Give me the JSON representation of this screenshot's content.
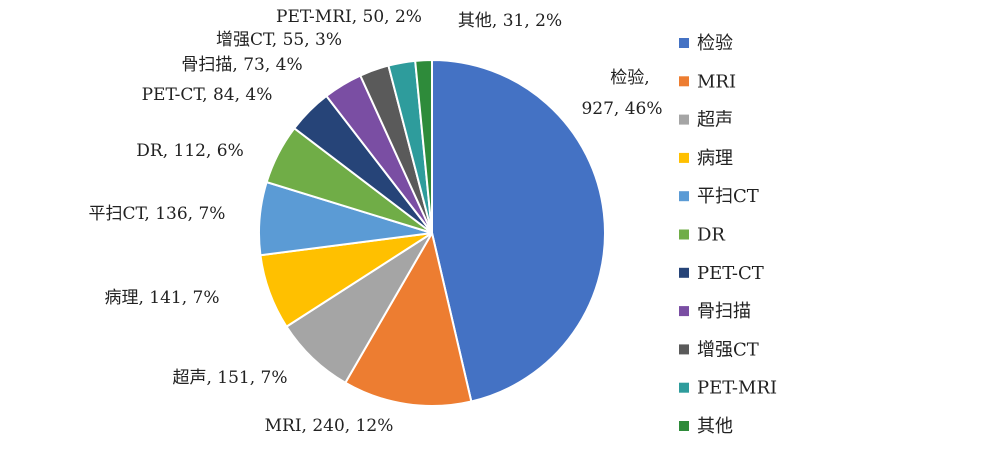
{
  "chart_data": {
    "type": "pie",
    "title": "",
    "series": [
      {
        "values": [
          927,
          240,
          151,
          141,
          136,
          112,
          84,
          73,
          55,
          50,
          31
        ],
        "percents": [
          "46%",
          "12%",
          "7%",
          "7%",
          "7%",
          "6%",
          "4%",
          "4%",
          "3%",
          "2%",
          "2%"
        ]
      }
    ],
    "categories": [
      "检验",
      "MRI",
      "超声",
      "病理",
      "平扫CT",
      "DR",
      "PET-CT",
      "骨扫描",
      "增强CT",
      "PET-MRI",
      "其他"
    ],
    "colors": [
      "#4472C4",
      "#ED7D31",
      "#A5A5A5",
      "#FFC000",
      "#5B9BD5",
      "#70AD47",
      "#264478",
      "#7A4EA3",
      "#5A5A5A",
      "#2E9C9C",
      "#2E8B3A"
    ],
    "labels": [
      "检验,|927, 46%",
      "MRI, 240, 12%",
      "超声, 151, 7%",
      "病理, 141, 7%",
      "平扫CT, 136, 7%",
      "DR, 112, 6%",
      "PET-CT, 84, 4%",
      "骨扫描, 73, 4%",
      "增强CT, 55, 3%",
      "PET-MRI, 50, 2%",
      "其他, 31, 2%"
    ],
    "legend_position": "right"
  }
}
